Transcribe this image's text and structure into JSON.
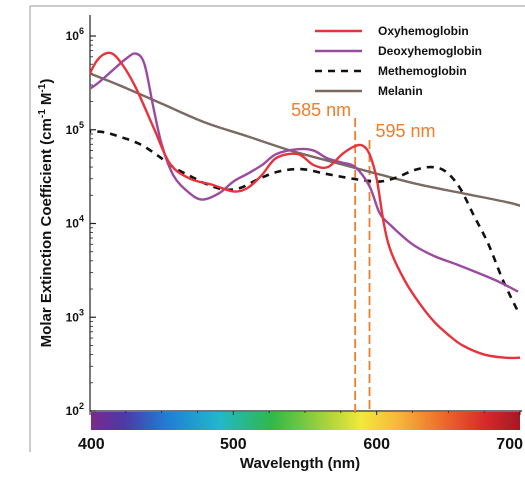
{
  "chart_data": {
    "type": "line",
    "title": "",
    "xlabel": "Wavelength (nm)",
    "ylabel_parts": [
      "Molar Extinction Coefficient (cm",
      "-1",
      " M",
      "-1",
      ")"
    ],
    "xlim": [
      400,
      700
    ],
    "ylim": [
      100,
      1000000
    ],
    "yscale": "log",
    "x_ticks": [
      400,
      500,
      600,
      700
    ],
    "x_tick_labels": [
      "400",
      "500",
      "600",
      "700"
    ],
    "y_ticks": [
      100,
      1000,
      10000,
      100000,
      1000000
    ],
    "y_tick_labels": [
      {
        "base": "10",
        "exp": "2"
      },
      {
        "base": "10",
        "exp": "3"
      },
      {
        "base": "10",
        "exp": "4"
      },
      {
        "base": "10",
        "exp": "5"
      },
      {
        "base": "10",
        "exp": "6"
      }
    ],
    "grid": false,
    "legend_position": "top-right",
    "colorbar": "visible spectrum gradient along x-axis (400-700 nm)",
    "series": [
      {
        "name": "Oxyhemoglobin",
        "color": "#e8323c",
        "dash": "solid",
        "points": [
          [
            396,
            300000
          ],
          [
            405,
            550000
          ],
          [
            414,
            660000
          ],
          [
            422,
            510000
          ],
          [
            432,
            280000
          ],
          [
            445,
            100000
          ],
          [
            456,
            43000
          ],
          [
            470,
            30000
          ],
          [
            485,
            26000
          ],
          [
            500,
            22000
          ],
          [
            510,
            24000
          ],
          [
            520,
            33000
          ],
          [
            530,
            50000
          ],
          [
            545,
            55000
          ],
          [
            556,
            42000
          ],
          [
            566,
            40000
          ],
          [
            576,
            55000
          ],
          [
            584,
            66000
          ],
          [
            590,
            68000
          ],
          [
            595,
            55000
          ],
          [
            600,
            30000
          ],
          [
            605,
            10000
          ],
          [
            610,
            5000
          ],
          [
            620,
            2400
          ],
          [
            630,
            1400
          ],
          [
            640,
            900
          ],
          [
            650,
            650
          ],
          [
            660,
            500
          ],
          [
            675,
            400
          ],
          [
            690,
            370
          ],
          [
            700,
            370
          ]
        ]
      },
      {
        "name": "Deoxyhemoglobin",
        "color": "#9b4b9f",
        "dash": "solid",
        "points": [
          [
            396,
            250000
          ],
          [
            405,
            310000
          ],
          [
            415,
            420000
          ],
          [
            425,
            570000
          ],
          [
            432,
            650000
          ],
          [
            438,
            500000
          ],
          [
            444,
            180000
          ],
          [
            450,
            70000
          ],
          [
            458,
            33000
          ],
          [
            468,
            22000
          ],
          [
            478,
            18000
          ],
          [
            490,
            21000
          ],
          [
            500,
            28000
          ],
          [
            510,
            34000
          ],
          [
            520,
            42000
          ],
          [
            530,
            55000
          ],
          [
            545,
            62000
          ],
          [
            556,
            60000
          ],
          [
            565,
            50000
          ],
          [
            575,
            45000
          ],
          [
            585,
            40000
          ],
          [
            595,
            25000
          ],
          [
            602,
            13000
          ],
          [
            610,
            9500
          ],
          [
            625,
            6000
          ],
          [
            640,
            4500
          ],
          [
            655,
            3700
          ],
          [
            670,
            3000
          ],
          [
            685,
            2400
          ],
          [
            698,
            1900
          ]
        ]
      },
      {
        "name": "Methemoglobin",
        "color": "#111111",
        "dash": "dashed",
        "points": [
          [
            396,
            95000
          ],
          [
            408,
            95000
          ],
          [
            420,
            85000
          ],
          [
            435,
            70000
          ],
          [
            448,
            52000
          ],
          [
            458,
            40000
          ],
          [
            470,
            32000
          ],
          [
            482,
            26000
          ],
          [
            494,
            23000
          ],
          [
            505,
            24000
          ],
          [
            518,
            30000
          ],
          [
            532,
            36000
          ],
          [
            548,
            38000
          ],
          [
            564,
            34000
          ],
          [
            578,
            31000
          ],
          [
            590,
            29000
          ],
          [
            602,
            28000
          ],
          [
            614,
            31000
          ],
          [
            626,
            37000
          ],
          [
            638,
            40000
          ],
          [
            648,
            36000
          ],
          [
            658,
            24000
          ],
          [
            668,
            12000
          ],
          [
            678,
            6000
          ],
          [
            688,
            2500
          ],
          [
            698,
            1200
          ]
        ]
      },
      {
        "name": "Melanin",
        "color": "#7a6a62",
        "dash": "solid",
        "points": [
          [
            396,
            420000
          ],
          [
            420,
            300000
          ],
          [
            450,
            190000
          ],
          [
            480,
            120000
          ],
          [
            510,
            85000
          ],
          [
            540,
            60000
          ],
          [
            570,
            45000
          ],
          [
            600,
            34000
          ],
          [
            630,
            26000
          ],
          [
            660,
            21000
          ],
          [
            690,
            17000
          ],
          [
            700,
            15500
          ]
        ]
      }
    ],
    "annotations": [
      {
        "text": "585 nm",
        "x": 585,
        "color": "#f07d2a"
      },
      {
        "text": "595 nm",
        "x": 595,
        "color": "#f07d2a"
      }
    ]
  }
}
